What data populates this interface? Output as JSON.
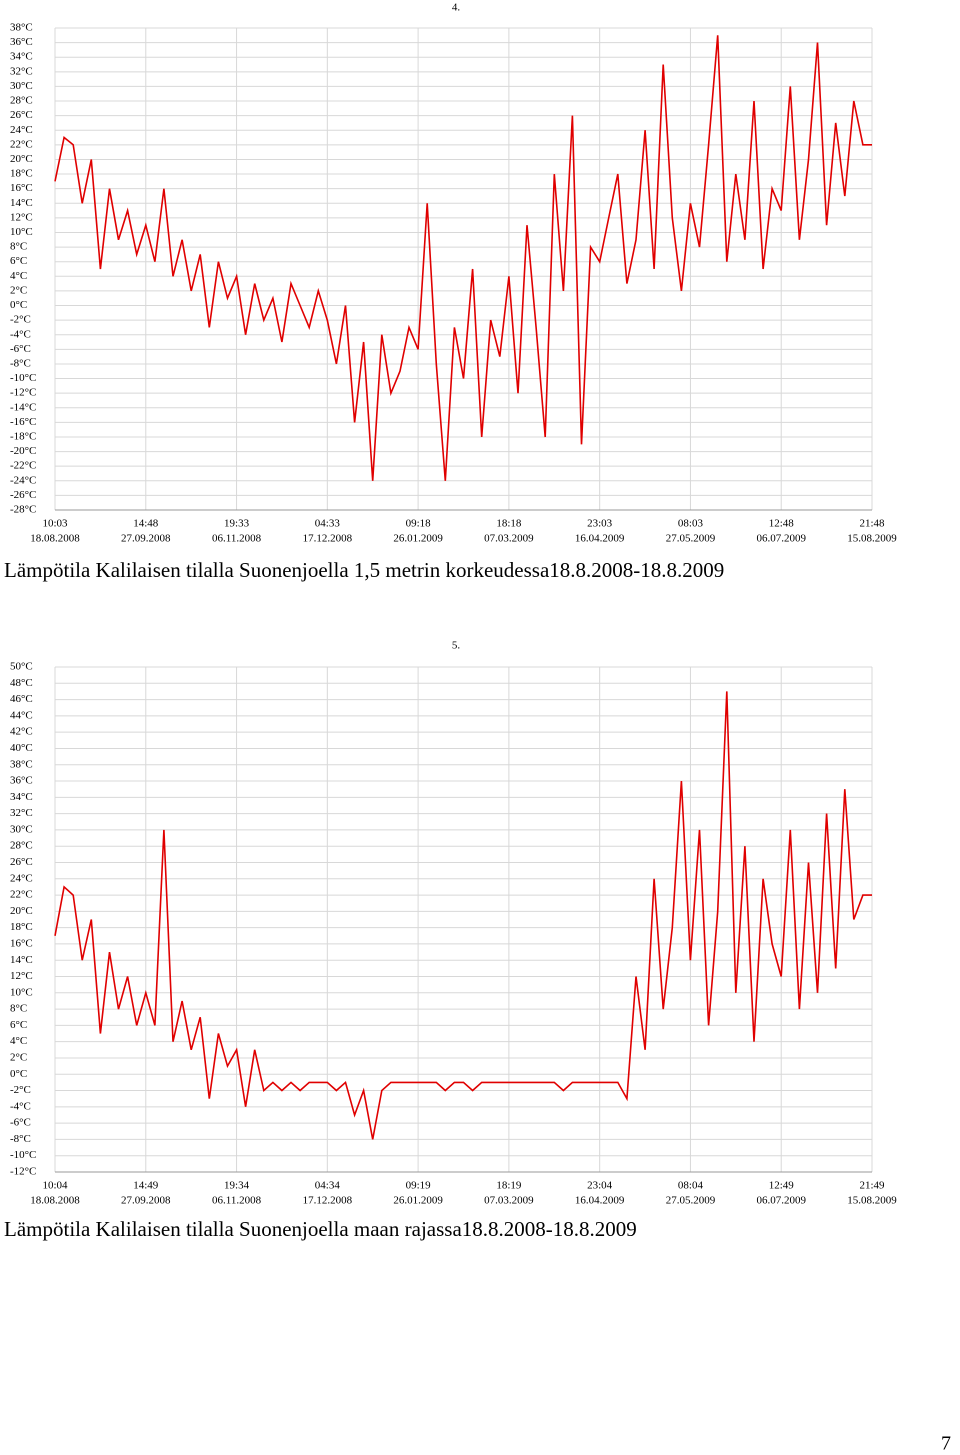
{
  "chart_data": [
    {
      "type": "line",
      "title": "4.",
      "caption": "Lämpötila Kalilaisen tilalla Suonenjoella 1,5 metrin korkeudessa18.8.2008-18.8.2009",
      "color": "#e00000",
      "grid": true,
      "xtick_labels": [
        {
          "time": "10:03",
          "date": "18.08.2008"
        },
        {
          "time": "14:48",
          "date": "27.09.2008"
        },
        {
          "time": "19:33",
          "date": "06.11.2008"
        },
        {
          "time": "04:33",
          "date": "17.12.2008"
        },
        {
          "time": "09:18",
          "date": "26.01.2009"
        },
        {
          "time": "18:18",
          "date": "07.03.2009"
        },
        {
          "time": "23:03",
          "date": "16.04.2009"
        },
        {
          "time": "08:03",
          "date": "27.05.2009"
        },
        {
          "time": "12:48",
          "date": "06.07.2009"
        },
        {
          "time": "21:48",
          "date": "15.08.2009"
        }
      ],
      "ylim": [
        -28,
        38
      ],
      "yticks": [
        {
          "value": -28,
          "label": "-28°C"
        },
        {
          "value": -26,
          "label": "-26°C"
        },
        {
          "value": -24,
          "label": "-24°C"
        },
        {
          "value": -22,
          "label": "-22°C"
        },
        {
          "value": -20,
          "label": "-20°C"
        },
        {
          "value": -18,
          "label": "-18°C"
        },
        {
          "value": -16,
          "label": "-16°C"
        },
        {
          "value": -14,
          "label": "-14°C"
        },
        {
          "value": -12,
          "label": "-12°C"
        },
        {
          "value": -10,
          "label": "-10°C"
        },
        {
          "value": -8,
          "label": "-8°C"
        },
        {
          "value": -6,
          "label": "-6°C"
        },
        {
          "value": -4,
          "label": "-4°C"
        },
        {
          "value": -2,
          "label": "-2°C"
        },
        {
          "value": 0,
          "label": "0°C"
        },
        {
          "value": 2,
          "label": "2°C"
        },
        {
          "value": 4,
          "label": "4°C"
        },
        {
          "value": 6,
          "label": "6°C"
        },
        {
          "value": 8,
          "label": "8°C"
        },
        {
          "value": 10,
          "label": "10°C"
        },
        {
          "value": 12,
          "label": "12°C"
        },
        {
          "value": 14,
          "label": "14°C"
        },
        {
          "value": 16,
          "label": "16°C"
        },
        {
          "value": 18,
          "label": "18°C"
        },
        {
          "value": 20,
          "label": "20°C"
        },
        {
          "value": 22,
          "label": "22°C"
        },
        {
          "value": 24,
          "label": "24°C"
        },
        {
          "value": 26,
          "label": "26°C"
        },
        {
          "value": 28,
          "label": "28°C"
        },
        {
          "value": 30,
          "label": "30°C"
        },
        {
          "value": 32,
          "label": "32°C"
        },
        {
          "value": 34,
          "label": "34°C"
        },
        {
          "value": 36,
          "label": "36°C"
        },
        {
          "value": 38,
          "label": "38°C"
        }
      ],
      "values": [
        17,
        23,
        22,
        14,
        20,
        5,
        16,
        9,
        13,
        7,
        11,
        6,
        16,
        4,
        9,
        2,
        7,
        -3,
        6,
        1,
        4,
        -4,
        3,
        -2,
        1,
        -5,
        3,
        0,
        -3,
        2,
        -2,
        -8,
        0,
        -16,
        -5,
        -24,
        -4,
        -12,
        -9,
        -3,
        -6,
        14,
        -8,
        -24,
        -3,
        -10,
        5,
        -18,
        -2,
        -7,
        4,
        -12,
        11,
        -3,
        -18,
        18,
        2,
        26,
        -19,
        8,
        6,
        12,
        18,
        3,
        9,
        24,
        5,
        33,
        12,
        2,
        14,
        8,
        22,
        37,
        6,
        18,
        9,
        28,
        5,
        16,
        13,
        30,
        9,
        20,
        36,
        11,
        25,
        15,
        28,
        22,
        22
      ]
    },
    {
      "type": "line",
      "title": "5.",
      "caption": "Lämpötila Kalilaisen tilalla Suonenjoella maan rajassa18.8.2008-18.8.2009",
      "color": "#e00000",
      "grid": true,
      "xtick_labels": [
        {
          "time": "10:04",
          "date": "18.08.2008"
        },
        {
          "time": "14:49",
          "date": "27.09.2008"
        },
        {
          "time": "19:34",
          "date": "06.11.2008"
        },
        {
          "time": "04:34",
          "date": "17.12.2008"
        },
        {
          "time": "09:19",
          "date": "26.01.2009"
        },
        {
          "time": "18:19",
          "date": "07.03.2009"
        },
        {
          "time": "23:04",
          "date": "16.04.2009"
        },
        {
          "time": "08:04",
          "date": "27.05.2009"
        },
        {
          "time": "12:49",
          "date": "06.07.2009"
        },
        {
          "time": "21:49",
          "date": "15.08.2009"
        }
      ],
      "ylim": [
        -12,
        50
      ],
      "yticks": [
        {
          "value": -12,
          "label": "-12°C"
        },
        {
          "value": -10,
          "label": "-10°C"
        },
        {
          "value": -8,
          "label": "-8°C"
        },
        {
          "value": -6,
          "label": "-6°C"
        },
        {
          "value": -4,
          "label": "-4°C"
        },
        {
          "value": -2,
          "label": "-2°C"
        },
        {
          "value": 0,
          "label": "0°C"
        },
        {
          "value": 2,
          "label": "2°C"
        },
        {
          "value": 4,
          "label": "4°C"
        },
        {
          "value": 6,
          "label": "6°C"
        },
        {
          "value": 8,
          "label": "8°C"
        },
        {
          "value": 10,
          "label": "10°C"
        },
        {
          "value": 12,
          "label": "12°C"
        },
        {
          "value": 14,
          "label": "14°C"
        },
        {
          "value": 16,
          "label": "16°C"
        },
        {
          "value": 18,
          "label": "18°C"
        },
        {
          "value": 20,
          "label": "20°C"
        },
        {
          "value": 22,
          "label": "22°C"
        },
        {
          "value": 24,
          "label": "24°C"
        },
        {
          "value": 26,
          "label": "26°C"
        },
        {
          "value": 28,
          "label": "28°C"
        },
        {
          "value": 30,
          "label": "30°C"
        },
        {
          "value": 32,
          "label": "32°C"
        },
        {
          "value": 34,
          "label": "34°C"
        },
        {
          "value": 36,
          "label": "36°C"
        },
        {
          "value": 38,
          "label": "38°C"
        },
        {
          "value": 40,
          "label": "40°C"
        },
        {
          "value": 42,
          "label": "42°C"
        },
        {
          "value": 44,
          "label": "44°C"
        },
        {
          "value": 46,
          "label": "46°C"
        },
        {
          "value": 48,
          "label": "48°C"
        },
        {
          "value": 50,
          "label": "50°C"
        }
      ],
      "values": [
        17,
        23,
        22,
        14,
        19,
        5,
        15,
        8,
        12,
        6,
        10,
        6,
        30,
        4,
        9,
        3,
        7,
        -3,
        5,
        1,
        3,
        -4,
        3,
        -2,
        -1,
        -2,
        -1,
        -2,
        -1,
        -1,
        -1,
        -2,
        -1,
        -5,
        -2,
        -8,
        -2,
        -1,
        -1,
        -1,
        -1,
        -1,
        -1,
        -2,
        -1,
        -1,
        -2,
        -1,
        -1,
        -1,
        -1,
        -1,
        -1,
        -1,
        -1,
        -1,
        -2,
        -1,
        -1,
        -1,
        -1,
        -1,
        -1,
        -3,
        12,
        3,
        24,
        8,
        18,
        36,
        14,
        30,
        6,
        20,
        47,
        10,
        28,
        4,
        24,
        16,
        12,
        30,
        8,
        26,
        10,
        32,
        13,
        35,
        19,
        22,
        22
      ]
    }
  ],
  "page_number": "7"
}
